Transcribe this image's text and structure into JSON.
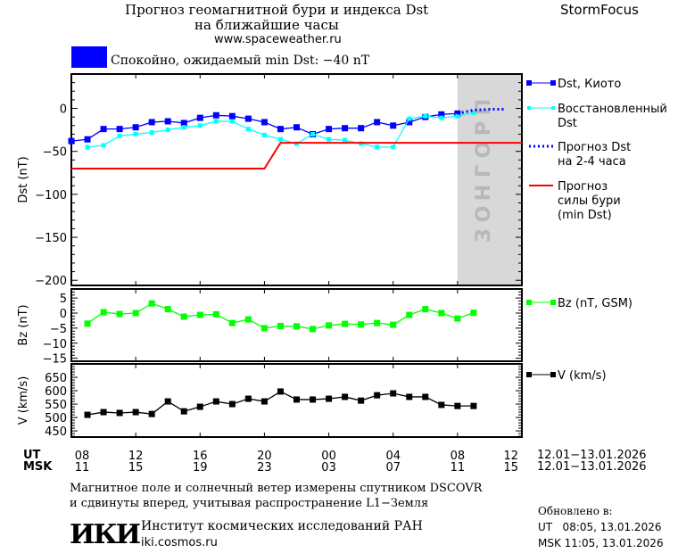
{
  "header": {
    "title_line1": "Прогноз геомагнитной бури и индекса Dst",
    "title_line2": "на ближайшие часы",
    "site": "www.spaceweather.ru",
    "brand": "StormFocus",
    "status": "Спокойно, ожидаемый min Dst: −40 nT",
    "status_color": "#0000ff"
  },
  "forecast_zone_label": "ПРОГНОЗ",
  "colors": {
    "dst_kyoto": "#0000ff",
    "dst_restored": "#00ffff",
    "dst_forecast": "#0000ff",
    "storm_forecast": "#ff0000",
    "bz": "#00ff00",
    "v": "#000000",
    "forecast_zone": "#d8d8d8"
  },
  "chart_data": [
    {
      "type": "line",
      "ylabel": "Dst (nT)",
      "ylim": [
        -206,
        40
      ],
      "yticks": [
        0,
        -50,
        -100,
        -150,
        -200
      ],
      "xlim_hours": [
        0,
        28
      ],
      "x_unit": "hours since 08 UT 12.01.2026",
      "forecast_zone_hours": [
        24,
        28
      ],
      "series": [
        {
          "name": "Dst, Киото",
          "style": "line-square",
          "x": [
            0,
            1,
            2,
            3,
            4,
            5,
            6,
            7,
            8,
            9,
            10,
            11,
            12,
            13,
            14,
            15,
            16,
            17,
            18,
            19,
            20,
            21,
            22,
            23,
            24
          ],
          "values": [
            -38,
            -36,
            -24,
            -24,
            -22,
            -16,
            -15,
            -17,
            -11,
            -8,
            -9,
            -12,
            -16,
            -24,
            -22,
            -30,
            -24,
            -23,
            -23,
            -16,
            -20,
            -16,
            -10,
            -7,
            -6
          ]
        },
        {
          "name": "Восстановленный Dst",
          "style": "line-small-square",
          "x": [
            1,
            2,
            3,
            4,
            5,
            6,
            7,
            8,
            9,
            10,
            11,
            12,
            13,
            14,
            15,
            16,
            17,
            18,
            19,
            20,
            21,
            22,
            23,
            24,
            25
          ],
          "values": [
            -45,
            -43,
            -32,
            -30,
            -28,
            -25,
            -22,
            -20,
            -15,
            -15,
            -24,
            -31,
            -36,
            -41,
            -30,
            -36,
            -37,
            -41,
            -45,
            -45,
            -12,
            -9,
            -11,
            -9,
            -5
          ]
        },
        {
          "name": "Прогноз Dst на 2-4 часа",
          "style": "dotted",
          "x": [
            24,
            25,
            26,
            27
          ],
          "values": [
            -6,
            -2,
            -1,
            -1
          ]
        },
        {
          "name": "Прогноз силы бури (min Dst)",
          "style": "line",
          "x": [
            0,
            12,
            13,
            28
          ],
          "values": [
            -70,
            -70,
            -40,
            -40
          ]
        }
      ]
    },
    {
      "type": "line",
      "ylabel": "Bz (nT)",
      "ylim": [
        -16,
        8
      ],
      "yticks": [
        5,
        0,
        -5,
        -10,
        -15
      ],
      "series": [
        {
          "name": "Bz (nT, GSM)",
          "x": [
            1,
            2,
            3,
            4,
            5,
            6,
            7,
            8,
            9,
            10,
            11,
            12,
            13,
            14,
            15,
            16,
            17,
            18,
            19,
            20,
            21,
            22,
            23,
            24,
            25
          ],
          "values": [
            -3.5,
            0.3,
            -0.3,
            0,
            3.2,
            1.3,
            -1.2,
            -0.6,
            -0.4,
            -3.3,
            -2.1,
            -5,
            -4.3,
            -4.4,
            -5.3,
            -4.1,
            -3.6,
            -3.8,
            -3.3,
            -3.9,
            -0.6,
            1.3,
            0,
            -1.8,
            0.1
          ]
        }
      ]
    },
    {
      "type": "line",
      "ylabel": "V (km/s)",
      "ylim": [
        427,
        700
      ],
      "yticks": [
        650,
        600,
        550,
        500,
        450
      ],
      "series": [
        {
          "name": "V (km/s)",
          "x": [
            1,
            2,
            3,
            4,
            5,
            6,
            7,
            8,
            9,
            10,
            11,
            12,
            13,
            14,
            15,
            16,
            17,
            18,
            19,
            20,
            21,
            22,
            23,
            24,
            25
          ],
          "values": [
            510,
            520,
            517,
            520,
            513,
            560,
            523,
            540,
            560,
            550,
            570,
            560,
            597,
            567,
            567,
            570,
            577,
            563,
            583,
            590,
            577,
            577,
            547,
            543,
            543
          ]
        }
      ]
    }
  ],
  "xaxis": {
    "ut_label": "UT",
    "msk_label": "MSK",
    "ut_ticks": [
      "08",
      "12",
      "16",
      "20",
      "00",
      "04",
      "08",
      "12"
    ],
    "msk_ticks": [
      "11",
      "15",
      "19",
      "23",
      "03",
      "07",
      "11",
      "15"
    ],
    "ut_range": "12.01−13.01.2026",
    "msk_range": "12.01−13.01.2026"
  },
  "footer": {
    "note_line1": "Магнитное поле и солнечный ветер измерены спутником DSCOVR",
    "note_line2": "и сдвинуты вперед, учитывая распространение L1−Земля",
    "logo": "ИКИ",
    "institute": "Институт космических исследований РАН",
    "institute_site": "iki.cosmos.ru",
    "updated_label": "Обновлено в:",
    "updated_ut": "UT   08:05, 13.01.2026",
    "updated_msk": "MSK 11:05, 13.01.2026"
  }
}
